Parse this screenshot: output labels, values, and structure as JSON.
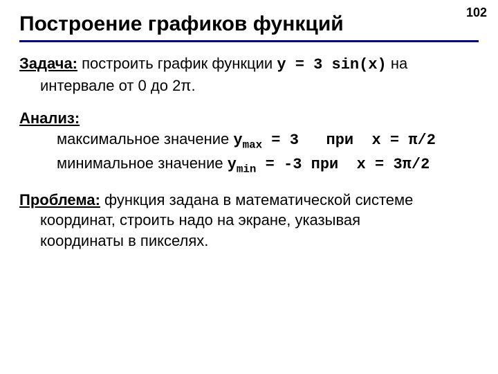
{
  "page_number": "102",
  "title": "Построение графиков функций",
  "section_task": {
    "head": "Задача:",
    "text_before_code": " построить график функции ",
    "code": "y = 3 sin(x)",
    "text_after_code": " на",
    "line2": "интервале от 0 до 2π."
  },
  "section_analysis": {
    "head": "Анализ:",
    "line1_prefix": "максимальное значение ",
    "line1_ysym": "y",
    "line1_sub": "max",
    "line1_mid": " = 3   при  ",
    "line1_x": "x",
    "line1_eq": " = π/2",
    "line2_prefix": "минимальное значение ",
    "line2_ysym": "y",
    "line2_sub": "min",
    "line2_mid": " = -3 при  ",
    "line2_x": "x",
    "line2_eq": " = 3π/2"
  },
  "section_problem": {
    "head": "Проблема:",
    "text1": " функция задана в математической системе",
    "text2": "координат, строить надо на экране, указывая",
    "text3": "координаты в пикселях."
  },
  "colors": {
    "rule": "#000080",
    "text": "#000000",
    "background": "#ffffff"
  },
  "fonts": {
    "body": "Arial",
    "mono": "Courier New",
    "title_size_pt": 30,
    "body_size_pt": 22
  }
}
